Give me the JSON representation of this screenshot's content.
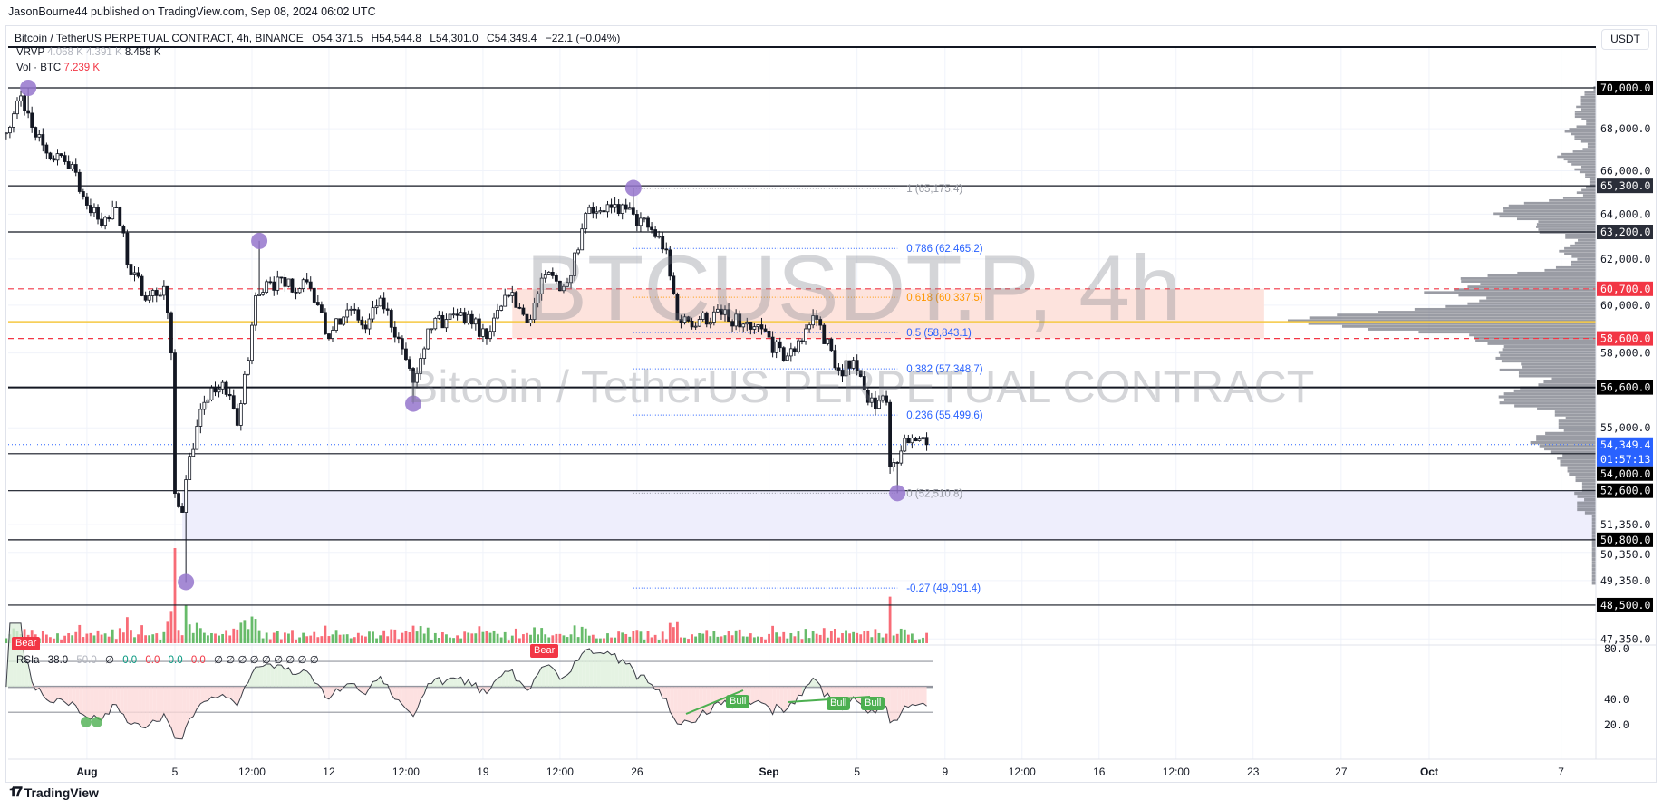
{
  "publisher": "JasonBourne44 published on TradingView.com, Sep 08, 2024 06:02 UTC",
  "legend": {
    "symbol": "Bitcoin / TetherUS PERPETUAL CONTRACT, 4h, BINANCE",
    "open": "O54,371.5",
    "high": "H54,544.8",
    "low": "L54,301.0",
    "close": "C54,349.4",
    "change": "−22.1 (−0.04%)"
  },
  "vrvp": {
    "label": "VRVP",
    "up": "4.068 K",
    "down": "4.391 K",
    "total": "8.458 K"
  },
  "volume": {
    "label": "Vol · BTC",
    "value": "7.239 K"
  },
  "currency": "USDT",
  "watermark": {
    "line1": "BTCUSDT.P, 4h",
    "line2": "Bitcoin / TetherUS PERPETUAL CONTRACT"
  },
  "rsi_legend": {
    "name": "RSIa",
    "v1": "38.0",
    "v2": "50.0",
    "v3": "∅",
    "g1": "0.0",
    "r1": "0.0",
    "g2": "0.0",
    "r2": "0.0",
    "nulls": "∅ ∅ ∅ ∅ ∅ ∅ ∅ ∅ ∅"
  },
  "tags": {
    "bear1": "Bear",
    "bear2": "Bear",
    "bull1": "Bull",
    "bull2": "Bull",
    "bull3": "Bull"
  },
  "branding": "TradingView",
  "colors": {
    "up": "#089981",
    "down": "#f23645",
    "vol_up": "#4caf50",
    "vol_down": "#f7525f",
    "pivot": "#9575cd",
    "fib": "#2962ff",
    "fib_618": "#ff9800",
    "zone_pink": "#fde3dd",
    "zone_lavender": "#eeeefc",
    "price_tag": "#2962ff"
  },
  "chart_data": {
    "type": "candlestick",
    "y_scale": "log",
    "ylim": [
      47000,
      71500
    ],
    "grid": true,
    "close_path": [
      [
        "2024-07-28T08:00",
        67800
      ],
      [
        "2024-07-29T00:00",
        69600
      ],
      [
        "2024-07-29T16:00",
        67600
      ],
      [
        "2024-07-30T12:00",
        66500
      ],
      [
        "2024-07-31T08:00",
        66300
      ],
      [
        "2024-07-31T20:00",
        64800
      ],
      [
        "2024-08-01T16:00",
        63500
      ],
      [
        "2024-08-02T08:00",
        64300
      ],
      [
        "2024-08-03T00:00",
        61300
      ],
      [
        "2024-08-03T20:00",
        60400
      ],
      [
        "2024-08-04T12:00",
        60800
      ],
      [
        "2024-08-04T20:00",
        58000
      ],
      [
        "2024-08-05T00:00",
        52500
      ],
      [
        "2024-08-05T08:00",
        51800
      ],
      [
        "2024-08-05T16:00",
        53900
      ],
      [
        "2024-08-06T08:00",
        56000
      ],
      [
        "2024-08-07T04:00",
        56800
      ],
      [
        "2024-08-07T20:00",
        55100
      ],
      [
        "2024-08-08T08:00",
        57700
      ],
      [
        "2024-08-08T16:00",
        60400
      ],
      [
        "2024-08-09T08:00",
        61000
      ],
      [
        "2024-08-10T00:00",
        60800
      ],
      [
        "2024-08-11T00:00",
        61000
      ],
      [
        "2024-08-12T00:00",
        58600
      ],
      [
        "2024-08-12T20:00",
        59800
      ],
      [
        "2024-08-13T16:00",
        59000
      ],
      [
        "2024-08-14T08:00",
        60300
      ],
      [
        "2024-08-15T04:00",
        58600
      ],
      [
        "2024-08-15T20:00",
        56800
      ],
      [
        "2024-08-16T12:00",
        59000
      ],
      [
        "2024-08-17T08:00",
        59400
      ],
      [
        "2024-08-18T08:00",
        59600
      ],
      [
        "2024-08-19T04:00",
        58600
      ],
      [
        "2024-08-20T04:00",
        60400
      ],
      [
        "2024-08-21T04:00",
        59400
      ],
      [
        "2024-08-21T20:00",
        61300
      ],
      [
        "2024-08-22T16:00",
        60800
      ],
      [
        "2024-08-23T08:00",
        62400
      ],
      [
        "2024-08-23T20:00",
        64300
      ],
      [
        "2024-08-24T20:00",
        64300
      ],
      [
        "2024-08-25T20:00",
        64000
      ],
      [
        "2024-08-26T16:00",
        63300
      ],
      [
        "2024-08-27T08:00",
        62400
      ],
      [
        "2024-08-27T20:00",
        59400
      ],
      [
        "2024-08-28T20:00",
        59400
      ],
      [
        "2024-08-29T20:00",
        59600
      ],
      [
        "2024-08-30T20:00",
        59200
      ],
      [
        "2024-08-31T16:00",
        59000
      ],
      [
        "2024-09-01T16:00",
        57700
      ],
      [
        "2024-09-02T16:00",
        59000
      ],
      [
        "2024-09-03T04:00",
        59400
      ],
      [
        "2024-09-04T04:00",
        57300
      ],
      [
        "2024-09-04T20:00",
        57700
      ],
      [
        "2024-09-05T12:00",
        56000
      ],
      [
        "2024-09-06T08:00",
        56000
      ],
      [
        "2024-09-06T12:00",
        53500
      ],
      [
        "2024-09-07T00:00",
        54100
      ],
      [
        "2024-09-07T12:00",
        54600
      ],
      [
        "2024-09-08T04:00",
        54349.4
      ]
    ],
    "pivots": [
      [
        "2024-07-29T08:00",
        70000
      ],
      [
        "2024-08-05T12:00",
        49300
      ],
      [
        "2024-08-08T20:00",
        62800
      ],
      [
        "2024-08-15T20:00",
        55950
      ],
      [
        "2024-08-25T20:00",
        65200
      ],
      [
        "2024-09-06T20:00",
        52510.8
      ]
    ],
    "horizontal_levels": [
      70000,
      65300,
      63200,
      56600,
      54000,
      52600,
      50800,
      48500
    ],
    "dashed_levels": [
      60700,
      58600
    ],
    "yellow_level": 59300,
    "zones": [
      {
        "from": "2024-08-20T08:00",
        "to": "2024-09-23T12:00",
        "top": 60700,
        "bottom": 58600,
        "color": "zone_pink"
      },
      {
        "from": "2024-08-05T08:00",
        "to": "end",
        "top": 52600,
        "bottom": 50800,
        "color": "zone_lavender"
      }
    ],
    "fibonacci": {
      "from": "2024-08-25T20:00",
      "to": "2024-09-06T20:00",
      "levels": [
        {
          "label": "1 (65,175.4)",
          "price": 65175.4,
          "color": "#9598a1"
        },
        {
          "label": "0.786 (62,465.2)",
          "price": 62465.2,
          "color": "#2962ff"
        },
        {
          "label": "0.618 (60,337.5)",
          "price": 60337.5,
          "color": "#ff9800"
        },
        {
          "label": "0.5 (58,843.1)",
          "price": 58843.1,
          "color": "#2962ff"
        },
        {
          "label": "0.382 (57,348.7)",
          "price": 57348.7,
          "color": "#2962ff"
        },
        {
          "label": "0.236 (55,499.6)",
          "price": 55499.6,
          "color": "#2962ff"
        },
        {
          "label": "0 (52,510.8)",
          "price": 52510.8,
          "color": "#9598a1"
        },
        {
          "label": "-0.27 (49,091.4)",
          "price": 49091.4,
          "color": "#2962ff"
        }
      ]
    },
    "price_axis": [
      {
        "label": "70,000.0",
        "price": 70000,
        "style": "black"
      },
      {
        "label": "68,000.0",
        "price": 68000,
        "style": "plain"
      },
      {
        "label": "66,000.0",
        "price": 66000,
        "style": "plain"
      },
      {
        "label": "65,300.0",
        "price": 65300,
        "style": "dark"
      },
      {
        "label": "64,000.0",
        "price": 64000,
        "style": "plain"
      },
      {
        "label": "63,200.0",
        "price": 63200,
        "style": "dark"
      },
      {
        "label": "62,000.0",
        "price": 62000,
        "style": "plain"
      },
      {
        "label": "60,700.0",
        "price": 60700,
        "style": "red"
      },
      {
        "label": "60,000.0",
        "price": 60000,
        "style": "plain"
      },
      {
        "label": "58,600.0",
        "price": 58600,
        "style": "red"
      },
      {
        "label": "58,000.0",
        "price": 58000,
        "style": "plain"
      },
      {
        "label": "56,600.0",
        "price": 56600,
        "style": "black"
      },
      {
        "label": "55,000.0",
        "price": 55000,
        "style": "plain"
      },
      {
        "label": "54,349.4",
        "price": 54349.4,
        "style": "blue",
        "sub": "01:57:13"
      },
      {
        "label": "54,000.0",
        "price": 54000,
        "style": "black"
      },
      {
        "label": "52,600.0",
        "price": 52600,
        "style": "black"
      },
      {
        "label": "51,350.0",
        "price": 51350,
        "style": "plain"
      },
      {
        "label": "50,800.0",
        "price": 50800,
        "style": "black"
      },
      {
        "label": "50,350.0",
        "price": 50350,
        "style": "plain"
      },
      {
        "label": "49,350.0",
        "price": 49350,
        "style": "plain"
      },
      {
        "label": "48,500.0",
        "price": 48500,
        "style": "black"
      },
      {
        "label": "47,350.0",
        "price": 47350,
        "style": "plain"
      }
    ],
    "rsi_axis": [
      {
        "label": "80.0",
        "value": 80
      },
      {
        "label": "40.0",
        "value": 40
      },
      {
        "label": "20.0",
        "value": 20
      }
    ],
    "rsi_levels": [
      70,
      50,
      30
    ],
    "rsi_period": 14,
    "x_ticks": [
      {
        "label": "Aug",
        "date": "2024-08-01T00:00",
        "bold": true
      },
      {
        "label": "5",
        "date": "2024-08-05T00:00"
      },
      {
        "label": "12:00",
        "date": "2024-08-08T12:00"
      },
      {
        "label": "12",
        "date": "2024-08-12T00:00"
      },
      {
        "label": "12:00",
        "date": "2024-08-15T12:00"
      },
      {
        "label": "19",
        "date": "2024-08-19T00:00"
      },
      {
        "label": "12:00",
        "date": "2024-08-22T12:00"
      },
      {
        "label": "26",
        "date": "2024-08-26T00:00"
      },
      {
        "label": "Sep",
        "date": "2024-09-01T00:00",
        "bold": true
      },
      {
        "label": "5",
        "date": "2024-09-05T00:00"
      },
      {
        "label": "9",
        "date": "2024-09-09T00:00"
      },
      {
        "label": "12:00",
        "date": "2024-09-12T12:00"
      },
      {
        "label": "16",
        "date": "2024-09-16T00:00"
      },
      {
        "label": "12:00",
        "date": "2024-09-19T12:00"
      },
      {
        "label": "23",
        "date": "2024-09-23T00:00"
      },
      {
        "label": "27",
        "date": "2024-09-27T00:00"
      },
      {
        "label": "Oct",
        "date": "2024-10-01T00:00",
        "bold": true
      },
      {
        "label": "7",
        "date": "2024-10-07T00:00"
      }
    ]
  }
}
